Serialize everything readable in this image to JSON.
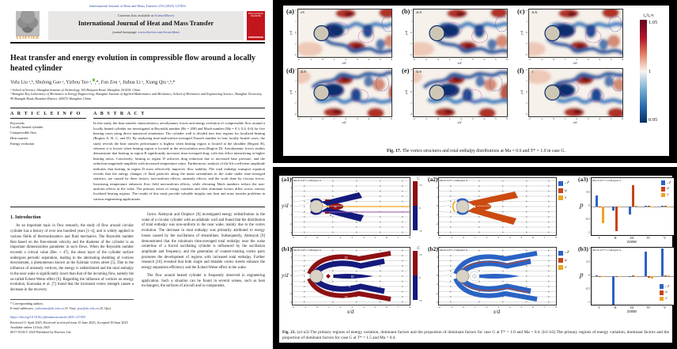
{
  "paper": {
    "top_citation": "International Journal of Heat and Mass Transfer 253 (2025) 127493",
    "header": {
      "elsevier_label": "ELSEVIER",
      "contents_line": "Contents lists available at",
      "sciencedirect": "ScienceDirect",
      "journal_title": "International Journal of Heat and Mass Transfer",
      "homepage_label": "journal homepage:",
      "homepage_url": "www.elsevier.com/locate/ijhmt",
      "cover_text": "HEAT and MASS TRANSFER"
    },
    "title": "Heat transfer and energy evolution in compressible flow around a locally heated cylinder",
    "authors_1": "Yulu Liu ᵃ,ᵇ, Shulong Gao ᵃ, Yizhou Tao ᵃ,",
    "authors_2": ",*, Fan Zou ᵃ, Jiahua Li ᵃ, Xiang Qiu ᵃ,ᵇ,*",
    "affil_a": "ᵃ School of Science, Shanghai Institute of Technology, 100 Haiquan Road, Shanghai, 201418, China",
    "affil_b": "ᵇ Shanghai Key Laboratory of Mechanics in Energy Engineering, Shanghai Institute of Applied Mathematics and Mechanics, School of Mechanics and Engineering Science, Shanghai University, 99 Shangda Road, Baoshan District, 200072 Shanghai, China",
    "article_info_heading": "A R T I C L E   I N F O",
    "abstract_heading": "A B S T R A C T",
    "keywords_label": "Keywords:",
    "keywords": [
      "Locally heated cylinder",
      "Compressible flow",
      "Heat transfer",
      "Energy evolution"
    ],
    "abstract": "In this study, the heat transfer characteristics, aerodynamic forces and energy evolution of compressible flow around a locally heated cylinder are investigated at Reynolds number (Re = 200) and Mach number (Ma = 0.3, 0.4, 0.6) for five heating cases using direct numerical simulation. The cylinder wall is divided into four regions for localized heating (Region A, B, C, and D). By analyzing time-and-surface-averaged Nusselt number in four locally heated cases, the study reveals the heat transfer performance is highest when heating region is located at the shoulder (Region B), whereas it is lowest when heating region is located in the recirculation area (Region D). Aerodynamic forces studies demonstrate that heating in region B significantly increases time-averaged drag, with this effect intensifying at higher heating ratios. Conversely, heating in region D achieves drag reduction due to increased base pressure, and the reduction magnitude amplifies with increased temperature ratios. Furthermore, analysis of the lift coefficient amplitude indicates that heating in region D most effectively improves flow stability. The total enthalpy transport equation reveals that the energy changes of fluid particles along the mean streamlines in the wake under time-averaged statistics, are caused by three factors: non-uniform effects, unsteady effects, and the work done by viscous forces. Increasing temperature enhances flow field non-uniform effects, while elevating Mach numbers reduce the non-uniform effects in the wake. The primary zones of energy variation and their dominant factors differ across various localized heating regions. The results of this study provide valuable insights into heat and mass transfer problems in various engineering applications.",
    "intro_heading": "1. Introduction",
    "intro_col1": "As an important topic in flow research, the study of flow around circular cylinder has a history of over one hundred years [1–4], and is widely applied in various fields of thermodynamics and fluid mechanics. The Reynolds number Reᴅ based on the free-stream velocity and the diameter of the cylinder is an important dimensionless parameter in such flows. When the Reynolds number exceeds a critical value (Reᴄ ≈ 47), the shear layer of the cylinder surface undergoes periodic separation, leading to the alternating shedding of vortices downstream, a phenomenon known as the Kármán vortex street [5]. Due to the influence of unsteady vortices, the energy is redistributed and the total enthalpy in the near wake is significantly lower than that of the incoming flow, namely the so-called Eckert-Weise effect [6]. Regarding the influence of vortices on energy evolution, Kurosaka et al. [7] found that the increased vortex strength causes a decrease in the recovery",
    "intro_col2_p1": "factor. Aleksyuk and Osiptsov [8] investigated energy redistribution in the wake of a circular cylinder with an adiabatic wall and found that the distribution of total enthalpy was non-uniform in the near wake, mainly due to the vortex evolution. The decrease in total enthalpy was primarily attributed to energy losses caused by the oscillations of streamlines. Subsequently, Aleksyuk [9] demonstrated that the minimum time-averaged total enthalpy near the wake centerline of a forced oscillating cylinder is influenced by the oscillation amplitude and frequency, and the generation of counter-rotating vortex pairs promotes the development of regions with increased total enthalpy. Further research [10] revealed that both single and bistable vortex streets enhance the energy separation efficiency and the Eckert-Weise effect in the wake.",
    "intro_col2_p2": "The flow around heated cylinder is frequently observed in engineering application. Such a situation can be found in several scenes, such as heat exchangers, the surfaces of aircraft and in components,",
    "footnote": {
      "corresponding": "* Corresponding authors.",
      "email_prefix": "E-mail addresses:",
      "email1": "yizhoutao@sit.edu.cn",
      "email1_name": "(Y. Tao),",
      "email2": "qiux@sit.edu.cn",
      "email2_name": "(X. Qiu)."
    },
    "doi": "https://doi.org/10.1016/j.ijheatmasstransfer.2025.127493",
    "received": "Received 11 April 2025; Received in revised form 15 June 2025; Accepted 30 June 2025",
    "available": "Available online 14 July 2025",
    "issn": "0017-9310/© 2025 Published by Elsevier Ltd."
  },
  "fig17": {
    "panels": [
      {
        "letter": "(a)",
        "time_label": "t/6"
      },
      {
        "letter": "(b)",
        "time_label": "2t/6"
      },
      {
        "letter": "(c)",
        "time_label": "3t/6"
      },
      {
        "letter": "(d)",
        "time_label": "4t/6"
      },
      {
        "letter": "(e)",
        "time_label": "5t/6"
      },
      {
        "letter": "(f)",
        "time_label": "1"
      }
    ],
    "xlabel": "x/d",
    "ylabel": "y/d",
    "x_ticks": [
      "-2",
      "-1",
      "0",
      "1",
      "2",
      "3",
      "4",
      "5",
      "6"
    ],
    "y_ticks": [
      "2",
      "1",
      "0",
      "-1",
      "-2"
    ],
    "colorbar": {
      "label": "i₀/i₀∞",
      "ticks": [
        "1.05",
        "1",
        "0.95"
      ]
    },
    "caption_prefix": "Fig. 17.",
    "caption_text": "The vortex structures and total enthalpy distributions at Ma = 0.6 and T* = 1.0 in case G."
  },
  "fig21": {
    "xlabel": "x/d",
    "ylabel": "y/d",
    "x_ticks": [
      "-2",
      "-1",
      "0",
      "1",
      "2",
      "3",
      "4",
      "5",
      "6",
      "7",
      "8"
    ],
    "y_ticks": [
      "3",
      "2",
      "1",
      "0",
      "-1",
      "-2",
      "-3"
    ],
    "contour_panels": [
      {
        "id": "a1",
        "letter": "(a1)",
        "annotation": "Ma=0.4,T*=1.0,Region G",
        "type": "a1",
        "colorbar": true,
        "legend": false,
        "show_xlabel": false,
        "show_ylabel": true
      },
      {
        "id": "a2",
        "letter": "(a2)",
        "annotation": "Ma=0.4,T*=1.0,Region G",
        "type": "a2",
        "colorbar": false,
        "legend": true,
        "show_xlabel": false,
        "show_ylabel": false
      },
      {
        "id": "b1",
        "letter": "(b1)",
        "annotation": "Ma=0.4,T*=1.5,Region G",
        "type": "b1",
        "colorbar": true,
        "legend": false,
        "show_xlabel": true,
        "show_ylabel": true
      },
      {
        "id": "b2",
        "letter": "(b2)",
        "annotation": "Ma=0.4,T*=1.5,Region G",
        "type": "b2",
        "colorbar": false,
        "legend": true,
        "show_xlabel": true,
        "show_ylabel": false
      }
    ],
    "c_colorbar": {
      "label": "C",
      "top": ">0",
      "mid": "0",
      "bottom": "<0"
    },
    "legend": [
      {
        "name": "𝒩",
        "color": "#2a63c4"
      },
      {
        "name": "u",
        "color": "#c8431a"
      },
      {
        "name": "v",
        "color": "#f0a325"
      }
    ],
    "caption_prefix": "Fig. 21.",
    "caption_text": "(a1-a3) The primary regions of energy variation, dominant factors and the proportion of dominant factors for case G at T* = 1.0 and Ma = 0.4. (b1–b3) The primary regions of energy variation, dominant factors and the proportion of dominant factors for case G at T* = 1.5 and Ma = 0.4."
  },
  "chart_data": [
    {
      "type": "bar",
      "id": "a3",
      "panel_label": "(a3)",
      "title": "Ma=0.4,T*=1.0,Region G",
      "categories": [
        "I",
        "II",
        "III",
        "IV",
        "V"
      ],
      "series": [
        {
          "name": "𝒩",
          "color": "#2a63c4",
          "values": [
            0.4,
            -0.15,
            -0.27,
            0.02,
            0.02
          ]
        },
        {
          "name": "u",
          "color": "#c8431a",
          "values": [
            -0.03,
            -0.85,
            0.75,
            0.02,
            0.03
          ]
        },
        {
          "name": "v",
          "color": "#f0a325",
          "values": [
            -0.58,
            -0.03,
            0.04,
            0.01,
            0.01
          ]
        }
      ],
      "xlabel": "zone",
      "ylabel": "p",
      "ylim": [
        -1,
        1
      ],
      "y_ticks": [
        "1",
        "0.5",
        "0",
        "-0.5",
        "-1"
      ],
      "legend_position": "tr"
    },
    {
      "type": "bar",
      "id": "b3",
      "panel_label": "(b3)",
      "title": "Ma=0.4,T*=1.5,Region G",
      "categories": [
        "I",
        "II",
        "III",
        "IV",
        "V"
      ],
      "series": [
        {
          "name": "𝒩",
          "color": "#2a63c4",
          "values": [
            0.02,
            -1.0,
            0.01,
            0.86,
            0.97
          ]
        },
        {
          "name": "u",
          "color": "#c8431a",
          "values": [
            0.01,
            -0.02,
            0.03,
            -0.06,
            0.04
          ]
        },
        {
          "name": "v",
          "color": "#f0a325",
          "values": [
            0.01,
            -0.02,
            0.01,
            -0.09,
            0.02
          ]
        }
      ],
      "xlabel": "zone",
      "ylabel": "p",
      "ylim": [
        -1,
        1
      ],
      "y_ticks": [
        "1",
        "0.5",
        "0",
        "-0.5",
        "-1"
      ],
      "legend_position": "br"
    }
  ]
}
